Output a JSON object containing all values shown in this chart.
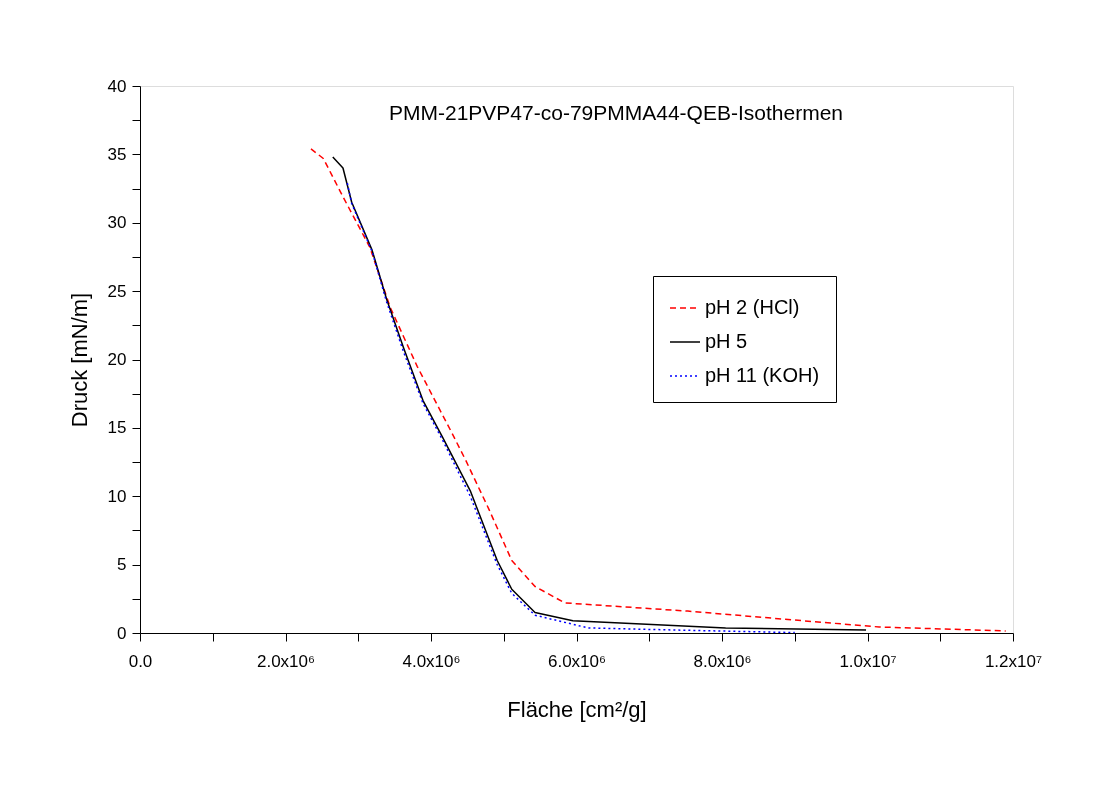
{
  "chart_data": {
    "type": "line",
    "title": "PMM-21PVP47-co-79PMMA44-QEB-Isothermen",
    "xlabel": "Fläche [cm²/g]",
    "ylabel": "Druck [mN/m]",
    "series": [
      {
        "name": "pH 2   (HCl)",
        "color": "#ff0000",
        "line_style": "dashed",
        "x": [
          2350000,
          2520000,
          2790000,
          3160000,
          3440000,
          3810000,
          4290000,
          4480000,
          4800000,
          5110000,
          5430000,
          5840000,
          7530000,
          9100000,
          10160000,
          11900000
        ],
        "values": [
          35.4,
          34.7,
          31.9,
          28.2,
          23.8,
          19.5,
          14.6,
          12.6,
          9.0,
          5.3,
          3.4,
          2.2,
          1.6,
          0.9,
          0.44,
          0.15
        ]
      },
      {
        "name": "pH 5",
        "color": "#000000",
        "line_style": "solid",
        "x": [
          2650000,
          2790000,
          2910000,
          3190000,
          3390000,
          3620000,
          3890000,
          4160000,
          4540000,
          4910000,
          5110000,
          5430000,
          5950000,
          8050000,
          9980000
        ],
        "values": [
          34.8,
          34.0,
          31.5,
          28.0,
          24.4,
          20.9,
          17.0,
          14.3,
          10.4,
          5.3,
          3.2,
          1.5,
          0.9,
          0.37,
          0.22
        ]
      },
      {
        "name": "pH 11 (KOH)",
        "color": "#0000ff",
        "line_style": "dotted",
        "x": [
          2850000,
          2910000,
          3190000,
          3390000,
          3620000,
          3890000,
          4160000,
          4540000,
          4910000,
          5110000,
          5430000,
          6160000,
          7500000,
          9000000
        ],
        "values": [
          32.9,
          31.4,
          27.9,
          24.2,
          20.6,
          16.8,
          14.1,
          10.0,
          5.0,
          2.9,
          1.3,
          0.37,
          0.2,
          0.03
        ]
      }
    ],
    "xlim": [
      0,
      12000000
    ],
    "ylim": [
      0,
      40
    ],
    "xticks": [
      {
        "value": 0,
        "label": "0.0"
      },
      {
        "value": 1000000,
        "label": null
      },
      {
        "value": 2000000,
        "label": "2.0x10⁶"
      },
      {
        "value": 3000000,
        "label": null
      },
      {
        "value": 4000000,
        "label": "4.0x10⁶"
      },
      {
        "value": 5000000,
        "label": null
      },
      {
        "value": 6000000,
        "label": "6.0x10⁶"
      },
      {
        "value": 7000000,
        "label": null
      },
      {
        "value": 8000000,
        "label": "8.0x10⁶"
      },
      {
        "value": 9000000,
        "label": null
      },
      {
        "value": 10000000,
        "label": "1.0x10⁷"
      },
      {
        "value": 11000000,
        "label": null
      },
      {
        "value": 12000000,
        "label": "1.2x10⁷"
      }
    ],
    "yticks": [
      0,
      {
        "value": 2.5,
        "label": null
      },
      5,
      {
        "value": 7.5,
        "label": null
      },
      10,
      {
        "value": 12.5,
        "label": null
      },
      15,
      {
        "value": 17.5,
        "label": null
      },
      20,
      {
        "value": 22.5,
        "label": null
      },
      25,
      {
        "value": 27.5,
        "label": null
      },
      30,
      {
        "value": 32.5,
        "label": null
      },
      35,
      {
        "value": 37.5,
        "label": null
      },
      40
    ],
    "grid": false,
    "legend": "right"
  }
}
